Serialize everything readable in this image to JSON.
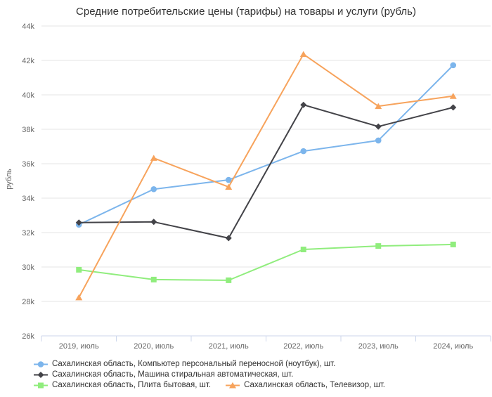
{
  "chart_data": {
    "type": "line",
    "title": "Средние потребительские цены (тарифы) на товары и услуги (рубль)",
    "ylabel": "рубль",
    "xlabel": "",
    "categories": [
      "2019, июль",
      "2020, июль",
      "2021, июль",
      "2022, июль",
      "2023, июль",
      "2024, июль"
    ],
    "series": [
      {
        "name": "Сахалинская область, Компьютер персональный переносной (ноутбук), шт.",
        "color": "#7cb5ec",
        "marker": "circle",
        "values": [
          32460,
          34520,
          35060,
          36730,
          37350,
          41720
        ]
      },
      {
        "name": "Сахалинская область, Машина стиральная автоматическая, шт.",
        "color": "#434348",
        "marker": "diamond",
        "values": [
          32580,
          32620,
          31680,
          39420,
          38160,
          39270
        ]
      },
      {
        "name": "Сахалинская область, Плита бытовая, шт.",
        "color": "#90ed7d",
        "marker": "square",
        "values": [
          29840,
          29270,
          29230,
          31020,
          31220,
          31310
        ]
      },
      {
        "name": "Сахалинская область, Телевизор, шт.",
        "color": "#f7a35c",
        "marker": "triangle",
        "values": [
          28230,
          36330,
          34650,
          42360,
          39340,
          39930
        ]
      }
    ],
    "ylim": [
      26000,
      44000
    ],
    "ytick_step": 2000,
    "ytick_labels": [
      "26k",
      "28k",
      "30k",
      "32k",
      "34k",
      "36k",
      "38k",
      "40k",
      "42k",
      "44k"
    ],
    "grid": true,
    "legend_position": "bottom-left",
    "colors": {
      "background": "#ffffff",
      "grid": "#e6e6e6",
      "axis_line": "#ccd6eb",
      "tick_label": "#666666",
      "title_text": "#333333",
      "legend_text": "#333333"
    }
  }
}
